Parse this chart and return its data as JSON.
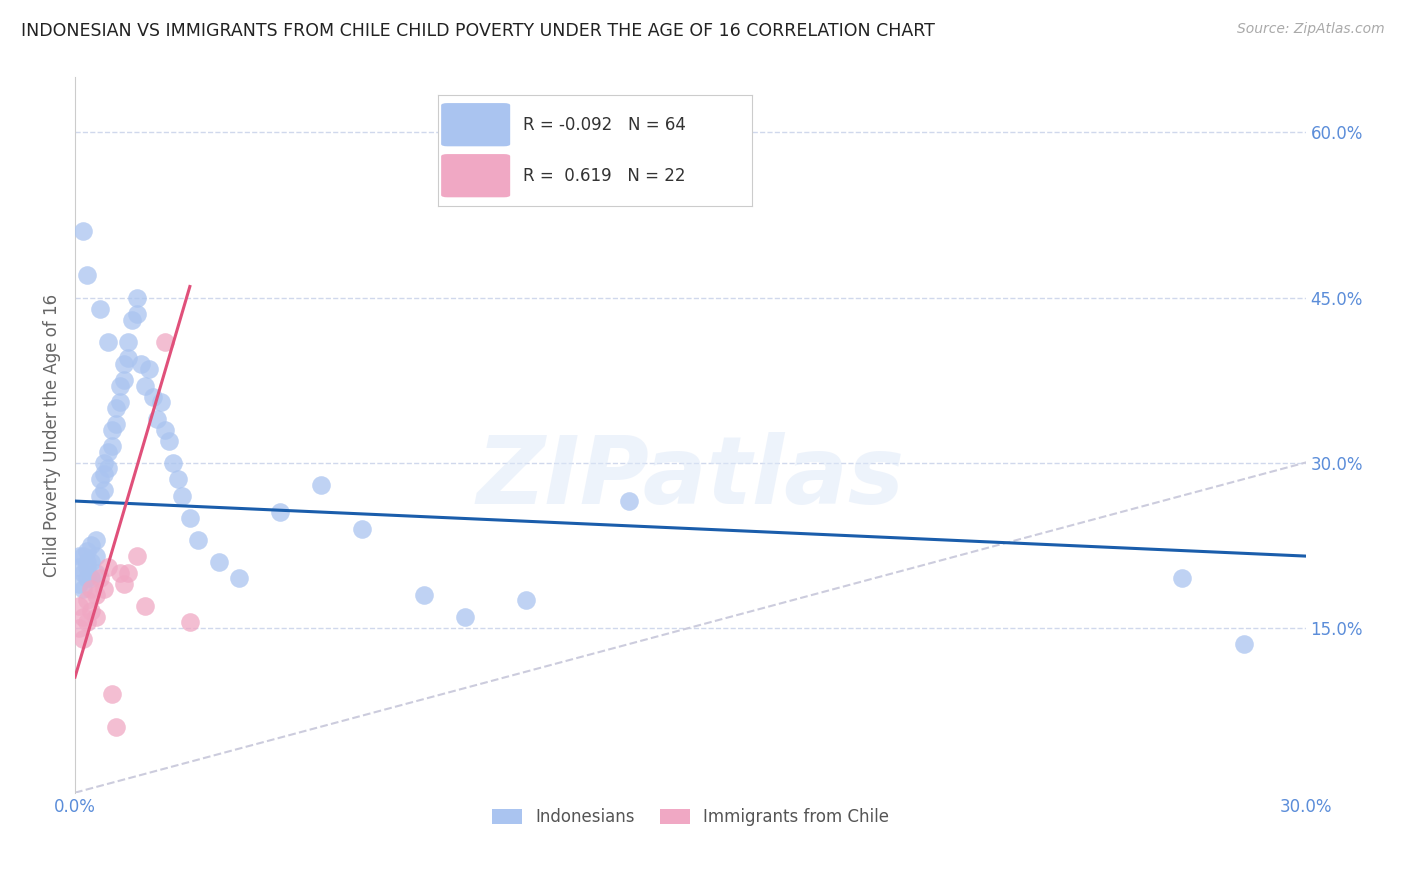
{
  "title": "INDONESIAN VS IMMIGRANTS FROM CHILE CHILD POVERTY UNDER THE AGE OF 16 CORRELATION CHART",
  "source": "Source: ZipAtlas.com",
  "ylabel": "Child Poverty Under the Age of 16",
  "xlim": [
    0.0,
    0.3
  ],
  "ylim": [
    0.0,
    0.65
  ],
  "xticks": [
    0.0,
    0.05,
    0.1,
    0.15,
    0.2,
    0.25,
    0.3
  ],
  "xticklabels": [
    "0.0%",
    "",
    "",
    "",
    "",
    "",
    "30.0%"
  ],
  "yticks_right": [
    0.15,
    0.3,
    0.45,
    0.6
  ],
  "ytick_labels_right": [
    "15.0%",
    "30.0%",
    "45.0%",
    "60.0%"
  ],
  "axis_color": "#5b8dd9",
  "watermark_text": "ZIPatlas",
  "indonesian_color": "#aac4f0",
  "chile_color": "#f0a8c4",
  "line_blue": "#1a5dab",
  "line_pink": "#e0507a",
  "diag_color": "#ccccdd",
  "indonesian_x": [
    0.001,
    0.001,
    0.001,
    0.002,
    0.002,
    0.002,
    0.003,
    0.003,
    0.003,
    0.003,
    0.004,
    0.004,
    0.004,
    0.005,
    0.005,
    0.005,
    0.006,
    0.006,
    0.007,
    0.007,
    0.007,
    0.008,
    0.008,
    0.009,
    0.009,
    0.01,
    0.01,
    0.011,
    0.011,
    0.012,
    0.012,
    0.013,
    0.013,
    0.014,
    0.015,
    0.015,
    0.016,
    0.017,
    0.018,
    0.019,
    0.02,
    0.021,
    0.022,
    0.023,
    0.024,
    0.025,
    0.026,
    0.028,
    0.03,
    0.035,
    0.04,
    0.05,
    0.06,
    0.07,
    0.085,
    0.095,
    0.11,
    0.135,
    0.27,
    0.285,
    0.002,
    0.003,
    0.006,
    0.008
  ],
  "indonesian_y": [
    0.215,
    0.205,
    0.19,
    0.215,
    0.2,
    0.185,
    0.22,
    0.21,
    0.195,
    0.205,
    0.225,
    0.21,
    0.195,
    0.23,
    0.215,
    0.2,
    0.285,
    0.27,
    0.3,
    0.29,
    0.275,
    0.31,
    0.295,
    0.33,
    0.315,
    0.35,
    0.335,
    0.37,
    0.355,
    0.39,
    0.375,
    0.41,
    0.395,
    0.43,
    0.45,
    0.435,
    0.39,
    0.37,
    0.385,
    0.36,
    0.34,
    0.355,
    0.33,
    0.32,
    0.3,
    0.285,
    0.27,
    0.25,
    0.23,
    0.21,
    0.195,
    0.255,
    0.28,
    0.24,
    0.18,
    0.16,
    0.175,
    0.265,
    0.195,
    0.135,
    0.51,
    0.47,
    0.44,
    0.41
  ],
  "chile_x": [
    0.001,
    0.001,
    0.002,
    0.002,
    0.003,
    0.003,
    0.004,
    0.004,
    0.005,
    0.005,
    0.006,
    0.007,
    0.008,
    0.009,
    0.01,
    0.011,
    0.012,
    0.013,
    0.015,
    0.017,
    0.022,
    0.028
  ],
  "chile_y": [
    0.17,
    0.15,
    0.16,
    0.14,
    0.175,
    0.155,
    0.185,
    0.165,
    0.18,
    0.16,
    0.195,
    0.185,
    0.205,
    0.09,
    0.06,
    0.2,
    0.19,
    0.2,
    0.215,
    0.17,
    0.41,
    0.155
  ],
  "blue_line_x0": 0.0,
  "blue_line_y0": 0.265,
  "blue_line_x1": 0.3,
  "blue_line_y1": 0.215,
  "pink_line_x0": 0.0,
  "pink_line_y0": 0.105,
  "pink_line_x1": 0.028,
  "pink_line_y1": 0.46
}
